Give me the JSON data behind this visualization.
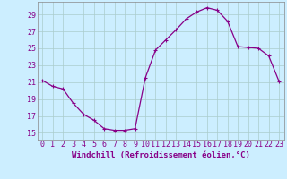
{
  "x": [
    0,
    1,
    2,
    3,
    4,
    5,
    6,
    7,
    8,
    9,
    10,
    11,
    12,
    13,
    14,
    15,
    16,
    17,
    18,
    19,
    20,
    21,
    22,
    23
  ],
  "y": [
    21.2,
    20.5,
    20.2,
    18.5,
    17.2,
    16.5,
    15.5,
    15.3,
    15.3,
    15.5,
    21.5,
    24.8,
    26.0,
    27.2,
    28.5,
    29.3,
    29.8,
    29.5,
    28.2,
    25.2,
    25.1,
    25.0,
    24.1,
    21.1
  ],
  "line_color": "#880088",
  "marker": "P",
  "marker_size": 2.5,
  "bg_color": "#cceeff",
  "grid_color": "#aacccc",
  "xlabel": "Windchill (Refroidissement éolien,°C)",
  "ylabel": "",
  "yticks": [
    15,
    17,
    19,
    21,
    23,
    25,
    27,
    29
  ],
  "xticks": [
    0,
    1,
    2,
    3,
    4,
    5,
    6,
    7,
    8,
    9,
    10,
    11,
    12,
    13,
    14,
    15,
    16,
    17,
    18,
    19,
    20,
    21,
    22,
    23
  ],
  "ylim": [
    14.2,
    30.5
  ],
  "xlim": [
    -0.5,
    23.5
  ],
  "xlabel_fontsize": 6.5,
  "tick_fontsize": 6.0,
  "linewidth": 0.9
}
